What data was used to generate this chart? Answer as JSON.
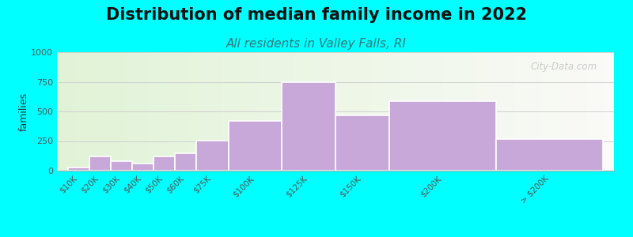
{
  "title": "Distribution of median family income in 2022",
  "subtitle": "All residents in Valley Falls, RI",
  "ylabel": "families",
  "categories": [
    "$10K",
    "$20K",
    "$30K",
    "$40K",
    "$50K",
    "$60K",
    "$75K",
    "$100K",
    "$125K",
    "$150K",
    "$200K",
    "> $200K"
  ],
  "values": [
    30,
    120,
    80,
    60,
    120,
    145,
    255,
    420,
    750,
    470,
    590,
    270
  ],
  "widths": [
    10,
    10,
    10,
    10,
    10,
    10,
    15,
    25,
    25,
    25,
    50,
    50
  ],
  "centers": [
    5,
    15,
    25,
    35,
    45,
    55,
    67.5,
    87.5,
    112.5,
    137.5,
    175,
    225
  ],
  "bar_color": "#c8a8d8",
  "bar_edge_color": "#ffffff",
  "ylim": [
    0,
    1000
  ],
  "yticks": [
    0,
    250,
    500,
    750,
    1000
  ],
  "background_color": "#00ffff",
  "title_fontsize": 15,
  "subtitle_fontsize": 11,
  "subtitle_color": "#337777",
  "watermark": "City-Data.com"
}
